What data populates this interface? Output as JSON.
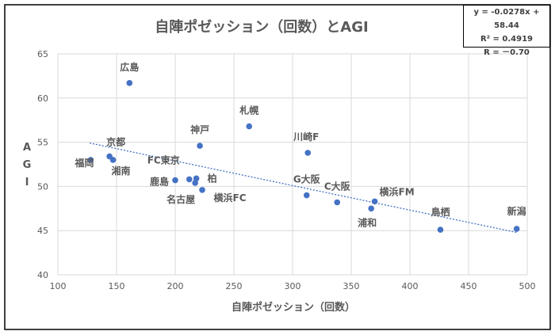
{
  "chart_data": {
    "type": "scatter",
    "title": "自陣ポゼッション（回数）とAGI",
    "xlabel": "自陣ポゼッション（回数）",
    "ylabel": "AGI",
    "xlim": [
      100,
      500
    ],
    "ylim": [
      40,
      65
    ],
    "xticks": [
      100,
      150,
      200,
      250,
      300,
      350,
      400,
      450,
      500
    ],
    "yticks": [
      40,
      45,
      50,
      55,
      60,
      65
    ],
    "grid": true,
    "points": [
      {
        "label": "広島",
        "x": 161,
        "y": 61.7
      },
      {
        "label": "札幌",
        "x": 263,
        "y": 56.8
      },
      {
        "label": "神戸",
        "x": 221,
        "y": 54.6
      },
      {
        "label": "川崎F",
        "x": 313,
        "y": 53.8
      },
      {
        "label": "京都",
        "x": 144,
        "y": 53.4
      },
      {
        "label": "湘南",
        "x": 147,
        "y": 53.0
      },
      {
        "label": "福岡",
        "x": 128,
        "y": 53.0
      },
      {
        "label": "FC東京",
        "x": 212,
        "y": 50.8
      },
      {
        "label": "柏",
        "x": 218,
        "y": 50.9
      },
      {
        "label": "鹿島",
        "x": 200,
        "y": 50.7
      },
      {
        "label": "名古屋",
        "x": 217,
        "y": 50.4
      },
      {
        "label": "横浜FC",
        "x": 223,
        "y": 49.6
      },
      {
        "label": "G大阪",
        "x": 312,
        "y": 49.0
      },
      {
        "label": "C大阪",
        "x": 338,
        "y": 48.2
      },
      {
        "label": "横浜FM",
        "x": 370,
        "y": 48.3
      },
      {
        "label": "浦和",
        "x": 367,
        "y": 47.5
      },
      {
        "label": "鳥栖",
        "x": 426,
        "y": 45.1
      },
      {
        "label": "新潟",
        "x": 491,
        "y": 45.2
      }
    ],
    "trendline": {
      "slope": -0.0278,
      "intercept": 58.44,
      "xrange": [
        127,
        491
      ]
    },
    "annotations": [
      "y = -0.0278x + 58.44",
      "R² = 0.4919",
      "R = －0.70"
    ],
    "colors": {
      "point": "#4472c4",
      "text": "#595959"
    }
  }
}
